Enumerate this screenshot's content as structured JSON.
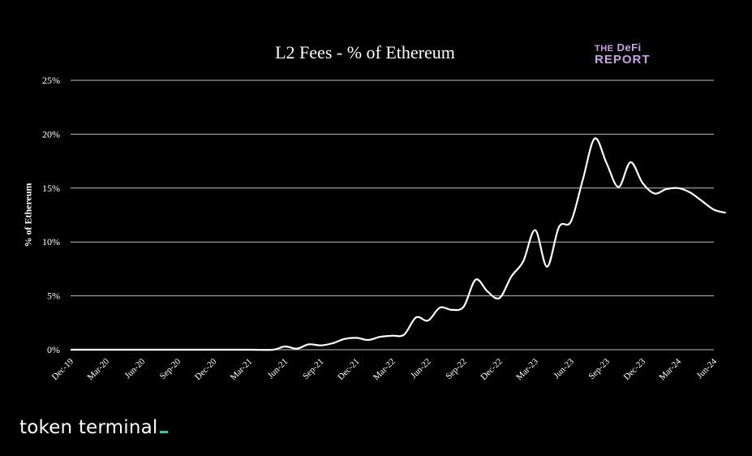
{
  "chart_data": {
    "type": "line",
    "title": "L2 Fees - % of Ethereum",
    "xlabel": "",
    "ylabel": "% of Ethereum",
    "ylim": [
      0,
      25
    ],
    "yticks": [
      "0%",
      "5%",
      "10%",
      "15%",
      "20%",
      "25%"
    ],
    "ytick_values": [
      0,
      5,
      10,
      15,
      20,
      25
    ],
    "categories": [
      "Dec-19",
      "Mar-20",
      "Jun-20",
      "Sep-20",
      "Dec-20",
      "Mar-21",
      "Jun-21",
      "Sep-21",
      "Dec-21",
      "Mar-22",
      "Jun-22",
      "Sep-22",
      "Dec-22",
      "Mar-23",
      "Jun-23",
      "Sep-23",
      "Dec-23",
      "Mar-24",
      "Jun-24"
    ],
    "grid": "horizontal",
    "legend": "none",
    "series": [
      {
        "color": "#ffffff",
        "x": [
          0,
          3,
          6,
          9,
          12,
          15,
          17,
          18,
          19,
          20,
          21,
          22,
          23,
          24,
          25,
          26,
          27,
          28,
          29,
          30,
          31,
          32,
          33,
          34,
          35,
          36,
          37,
          38,
          39,
          40,
          41,
          42,
          43,
          44,
          45,
          46,
          47,
          48,
          49,
          50,
          51,
          52,
          53,
          54,
          55
        ],
        "values": [
          0,
          0,
          0,
          0,
          0,
          0,
          0,
          0.3,
          0.1,
          0.5,
          0.4,
          0.6,
          1.0,
          1.1,
          0.9,
          1.2,
          1.3,
          1.4,
          3.0,
          2.7,
          3.9,
          3.7,
          4.0,
          6.5,
          5.4,
          4.8,
          6.8,
          8.2,
          11.1,
          7.7,
          11.4,
          11.9,
          15.8,
          19.6,
          17.3,
          15.1,
          17.4,
          15.5,
          14.5,
          14.9,
          15.0,
          14.6,
          13.8,
          13.0,
          12.7
        ]
      }
    ]
  },
  "logo": {
    "line1_small": "THE",
    "line1": "DeFi",
    "line2": "REPORT"
  },
  "brand": {
    "name": "token terminal"
  },
  "colors": {
    "background": "#000000",
    "line": "#ffffff",
    "grid": "#bfbfbf",
    "logo": "#c9a0e6",
    "brand_accent": "#18d3a8"
  }
}
